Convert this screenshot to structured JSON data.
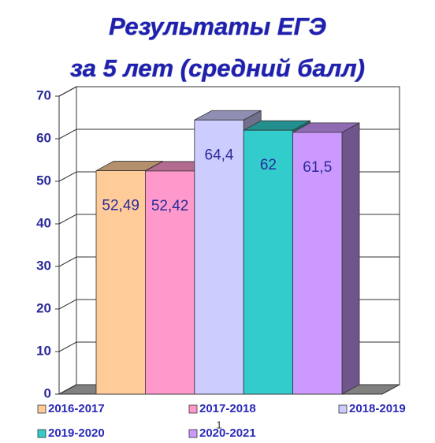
{
  "chart_data": {
    "type": "bar3d",
    "title": "Результаты ЕГЭ",
    "subtitle": "за 5 лет (средний балл)",
    "categories": [
      "1"
    ],
    "series": [
      {
        "name": "2016-2017",
        "color": "#ffcc99",
        "values": [
          52.49
        ],
        "value_labels": [
          "52,49"
        ]
      },
      {
        "name": "2017-2018",
        "color": "#ff99cc",
        "values": [
          52.42
        ],
        "value_labels": [
          "52,42"
        ]
      },
      {
        "name": "2018-2019",
        "color": "#ccccff",
        "values": [
          64.4
        ],
        "value_labels": [
          "64,4"
        ]
      },
      {
        "name": "2019-2020",
        "color": "#33cccc",
        "values": [
          62
        ],
        "value_labels": [
          "62"
        ]
      },
      {
        "name": "2020-2021",
        "color": "#cc99ff",
        "values": [
          61.5
        ],
        "value_labels": [
          "61,5"
        ]
      }
    ],
    "ylim": [
      0,
      70
    ],
    "yticks": [
      0,
      10,
      20,
      30,
      40,
      50,
      60,
      70
    ],
    "grid": true
  }
}
